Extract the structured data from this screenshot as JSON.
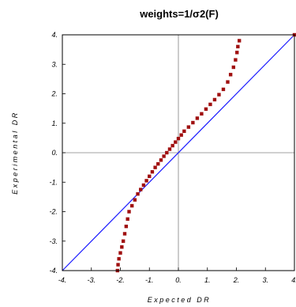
{
  "chart_data": {
    "type": "scatter",
    "title": "weights=1/σ2(F)",
    "xlabel": "Expected DR",
    "ylabel": "Experimental DR",
    "xlim": [
      -4,
      4
    ],
    "ylim": [
      -4,
      4
    ],
    "xticks": [
      "-4.",
      "-3.",
      "-2.",
      "-1.",
      "0.",
      "1.",
      "2.",
      "3.",
      "4."
    ],
    "yticks": [
      "4.",
      "3.",
      "2.",
      "1.",
      "0.",
      "-1.",
      "-2.",
      "-3.",
      "-4."
    ],
    "grid": "zero-lines",
    "colors": {
      "points": "#a01010",
      "reference_line": "#1a1aff",
      "zero_lines": "#808080",
      "frame": "#000000"
    },
    "reference_line": {
      "x": [
        -4,
        4
      ],
      "y": [
        -4,
        4
      ]
    },
    "series": [
      {
        "points": [
          [
            -2.1,
            -4.0
          ],
          [
            -2.08,
            -3.8
          ],
          [
            -2.05,
            -3.6
          ],
          [
            -2.0,
            -3.4
          ],
          [
            -1.95,
            -3.2
          ],
          [
            -1.9,
            -3.0
          ],
          [
            -1.85,
            -2.75
          ],
          [
            -1.8,
            -2.5
          ],
          [
            -1.75,
            -2.25
          ],
          [
            -1.7,
            -2.0
          ],
          [
            -1.6,
            -1.8
          ],
          [
            -1.5,
            -1.6
          ],
          [
            -1.4,
            -1.4
          ],
          [
            -1.3,
            -1.25
          ],
          [
            -1.2,
            -1.1
          ],
          [
            -1.1,
            -0.95
          ],
          [
            -1.0,
            -0.8
          ],
          [
            -0.9,
            -0.65
          ],
          [
            -0.8,
            -0.5
          ],
          [
            -0.7,
            -0.38
          ],
          [
            -0.6,
            -0.25
          ],
          [
            -0.5,
            -0.12
          ],
          [
            -0.4,
            0.0
          ],
          [
            -0.3,
            0.12
          ],
          [
            -0.2,
            0.24
          ],
          [
            -0.1,
            0.36
          ],
          [
            0.0,
            0.48
          ],
          [
            0.1,
            0.6
          ],
          [
            0.2,
            0.73
          ],
          [
            0.35,
            0.87
          ],
          [
            0.5,
            1.02
          ],
          [
            0.65,
            1.17
          ],
          [
            0.8,
            1.32
          ],
          [
            0.95,
            1.48
          ],
          [
            1.1,
            1.64
          ],
          [
            1.25,
            1.8
          ],
          [
            1.4,
            1.97
          ],
          [
            1.55,
            2.15
          ],
          [
            1.7,
            2.4
          ],
          [
            1.8,
            2.65
          ],
          [
            1.9,
            2.9
          ],
          [
            1.97,
            3.15
          ],
          [
            2.02,
            3.4
          ],
          [
            2.05,
            3.6
          ],
          [
            2.1,
            3.8
          ],
          [
            4.0,
            4.0
          ]
        ]
      }
    ]
  }
}
